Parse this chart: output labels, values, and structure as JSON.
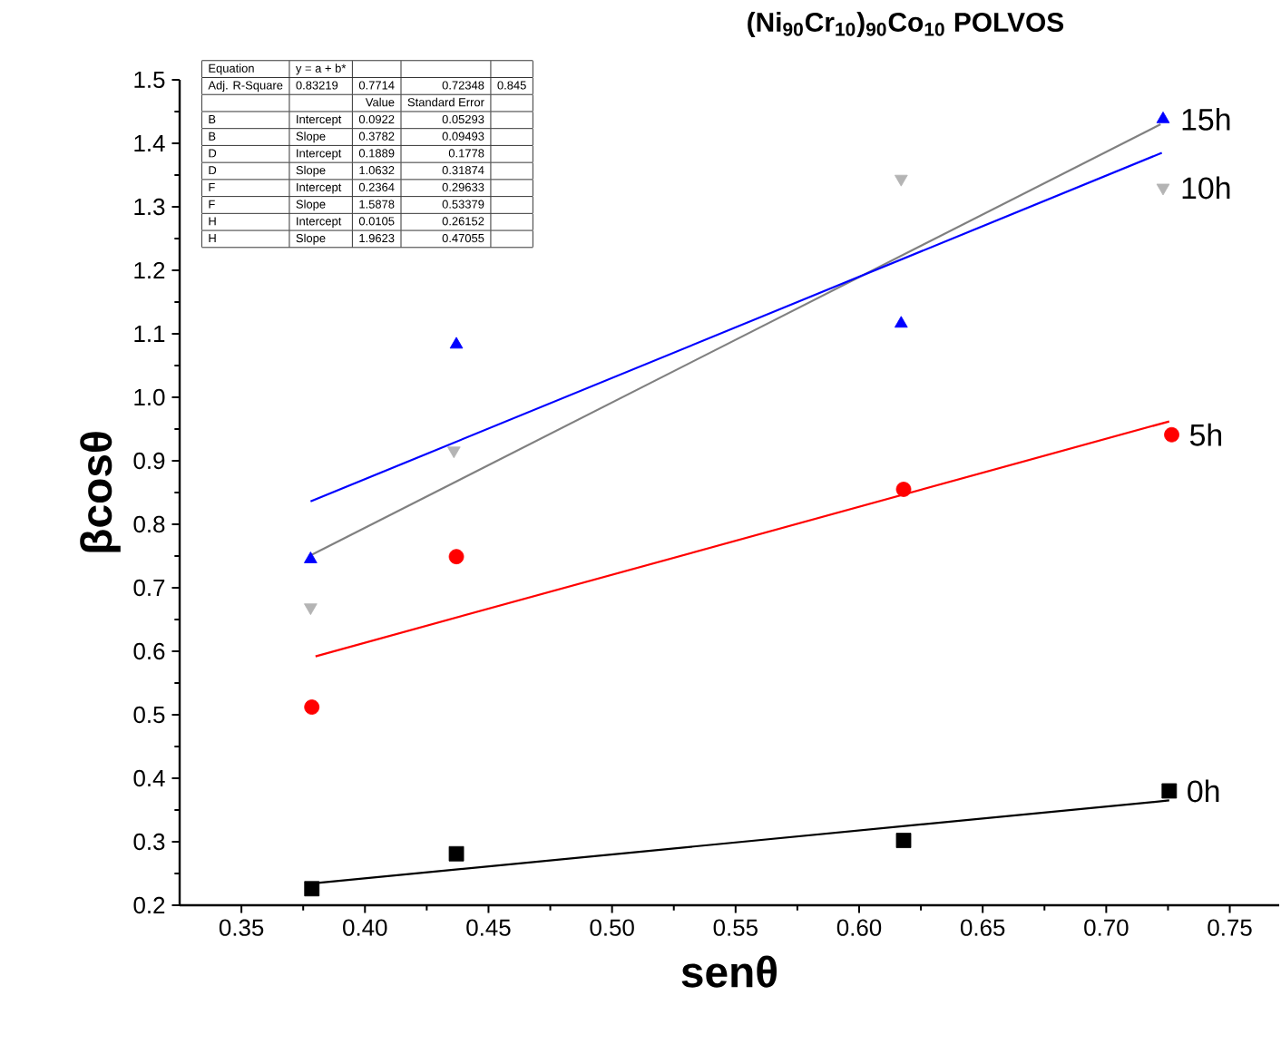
{
  "chart_data": {
    "type": "scatter",
    "title": "(Ni$_{90}$Cr$_{10}$)$_{90}$Co$_{10}$  POLVOS",
    "xlabel": "senθ",
    "ylabel": "βcosθ",
    "xlim": [
      0.325,
      0.77
    ],
    "ylim": [
      0.2,
      1.5
    ],
    "xticks": [
      0.35,
      {
        "value": 0.4,
        "label": "0.40"
      },
      0.45,
      {
        "value": 0.5,
        "label": "0.50"
      },
      0.55,
      {
        "value": 0.6,
        "label": "0.60"
      },
      0.65,
      {
        "value": 0.7,
        "label": "0.70"
      },
      0.75
    ],
    "yticks": [
      0.2,
      0.3,
      0.4,
      0.5,
      0.6,
      0.7,
      0.8,
      0.9,
      {
        "value": 1.0,
        "label": "1.0"
      },
      1.1,
      1.2,
      1.3,
      1.4,
      1.5
    ],
    "series": [
      {
        "type": "line",
        "color": "#000000",
        "marker": "none",
        "x": [
          0.378,
          0.7255
        ],
        "values": [
          0.234,
          0.365
        ]
      },
      {
        "type": "line",
        "color": "#ff0000",
        "marker": "none",
        "x": [
          0.38,
          0.7255
        ],
        "values": [
          0.592,
          0.962
        ]
      },
      {
        "type": "line",
        "color": "#808080",
        "marker": "none",
        "x": [
          0.378,
          0.722
        ],
        "values": [
          0.751,
          1.43
        ]
      },
      {
        "type": "line",
        "color": "#0000ff",
        "marker": "none",
        "x": [
          0.378,
          0.7225
        ],
        "values": [
          0.836,
          1.385
        ]
      },
      {
        "type": "scatter",
        "name": "0h",
        "color": "#000000",
        "marker": "square",
        "x": [
          0.3785,
          0.437,
          0.618,
          0.7255
        ],
        "values": [
          0.226,
          0.281,
          0.302,
          0.38
        ]
      },
      {
        "type": "scatter",
        "name": "5h",
        "color": "#ff0000",
        "marker": "circle",
        "x": [
          0.3785,
          0.437,
          0.618,
          0.7265
        ],
        "values": [
          0.512,
          0.749,
          0.855,
          0.941
        ]
      },
      {
        "type": "scatter",
        "name": "10h",
        "color": "#b4b4b4",
        "marker": "triangle-down",
        "x": [
          0.378,
          0.436,
          0.617,
          0.723
        ],
        "values": [
          0.669,
          0.916,
          1.344,
          1.33
        ]
      },
      {
        "type": "scatter",
        "name": "15h",
        "color": "#0000ff",
        "marker": "triangle",
        "x": [
          0.378,
          0.437,
          0.617,
          0.723
        ],
        "values": [
          0.745,
          1.083,
          1.116,
          1.438
        ]
      }
    ],
    "annotations": [
      "Equation",
      "y = a + b*",
      "Adj. R-Square",
      "0.83219",
      "0.7714",
      "0.72348",
      "0.845",
      "Value",
      "Standard Error",
      "B",
      "Intercept",
      "0.0922",
      "0.05293",
      "B",
      "Slope",
      "0.3782",
      "0.09493",
      "D",
      "Intercept",
      "0.1889",
      "0.1778",
      "D",
      "Slope",
      "1.0632",
      "0.31874",
      "F",
      "Intercept",
      "0.2364",
      "0.29633",
      "F",
      "Slope",
      "1.5878",
      "0.53379",
      "H",
      "Intercept",
      "0.0105",
      "0.26152",
      "H",
      "Slope",
      "1.9623",
      "0.47055"
    ]
  }
}
